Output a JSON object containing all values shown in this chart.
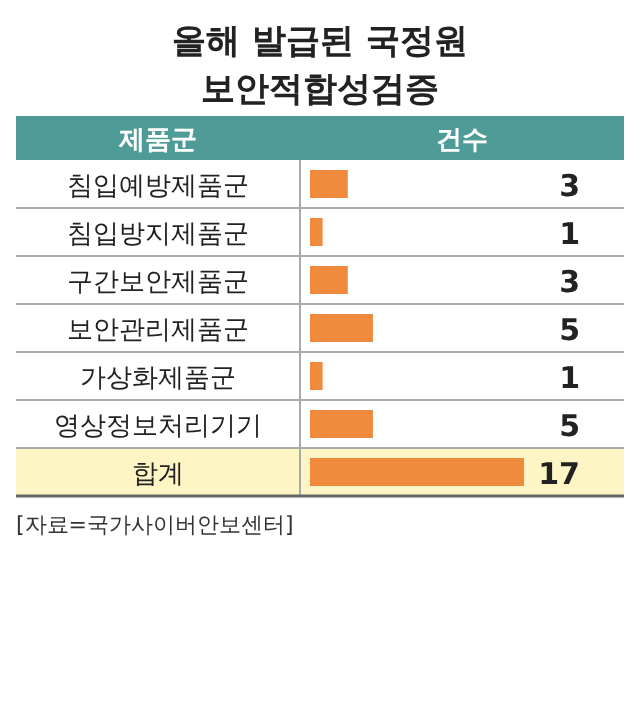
{
  "chart_data": {
    "type": "bar",
    "orientation": "horizontal",
    "title": "올해 발급된 국정원\n보안적합성검증",
    "ylabel": "제품군",
    "xlabel": "건수",
    "categories": [
      "침입예방제품군",
      "침입방지제품군",
      "구간보안제품군",
      "보안관리제품군",
      "가상화제품군",
      "영상정보처리기기",
      "합계"
    ],
    "values": [
      3,
      1,
      3,
      5,
      1,
      5,
      17
    ],
    "colors": [
      "#f08a3c",
      "#f08a3c",
      "#f08a3c",
      "#f08a3c",
      "#f08a3c",
      "#f08a3c",
      "#f08a3c"
    ],
    "bands": [
      {
        "axis": "y",
        "from": "합계",
        "to": "합계",
        "color": "#fdf5c4"
      }
    ],
    "data_labels": true,
    "annotations": [
      "[자료=국가사이버안보센터]"
    ]
  }
}
